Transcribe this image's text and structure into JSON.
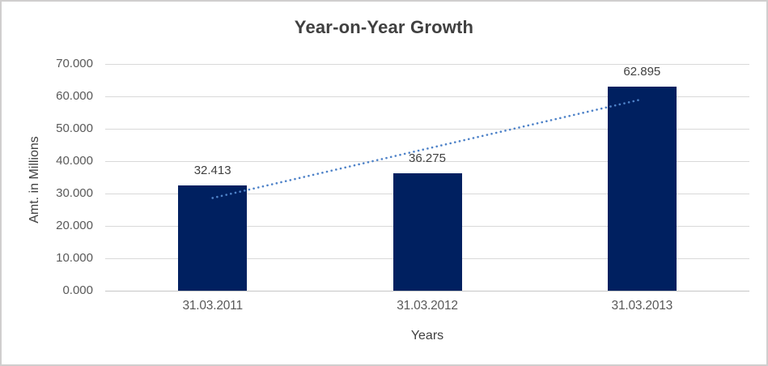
{
  "window": {
    "background": "#ffffff",
    "frame_border_color": "#d0cece"
  },
  "chart_data": {
    "type": "bar",
    "title": "Year-on-Year Growth",
    "categories": [
      "31.03.2011",
      "31.03.2012",
      "31.03.2013"
    ],
    "values": [
      32.413,
      36.275,
      62.895
    ],
    "data_labels": [
      "32.413",
      "36.275",
      "62.895"
    ],
    "xlabel": "Years",
    "ylabel": "Amt. in Millions",
    "ylim": [
      0,
      70
    ],
    "ytick_step": 10,
    "ytick_labels": [
      "0.000",
      "10.000",
      "20.000",
      "30.000",
      "40.000",
      "50.000",
      "60.000",
      "70.000"
    ],
    "grid": true,
    "legend": "none",
    "trendline": {
      "type": "linear",
      "style": "dotted"
    },
    "colors": {
      "bar": "#002060",
      "trendline": "#4e82c8",
      "gridline": "#d9d9d9",
      "axis_line": "#c6c6c6",
      "title_text": "#404040",
      "tick_text": "#595959",
      "label_text": "#404040"
    }
  }
}
